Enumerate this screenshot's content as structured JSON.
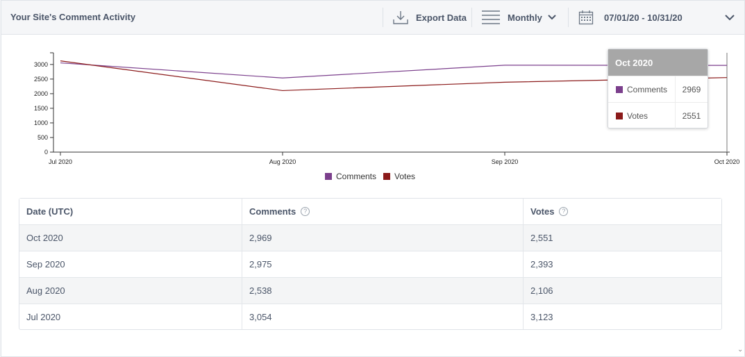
{
  "header": {
    "title": "Your Site's Comment Activity",
    "export_label": "Export Data",
    "period_label": "Monthly",
    "date_range": "07/01/20 - 10/31/20"
  },
  "colors": {
    "comments": "#7b3f8c",
    "votes": "#8b1a1a"
  },
  "chart_data": {
    "type": "line",
    "categories": [
      "Jul 2020",
      "Aug 2020",
      "Sep 2020",
      "Oct 2020"
    ],
    "series": [
      {
        "name": "Comments",
        "values": [
          3054,
          2538,
          2975,
          2969
        ]
      },
      {
        "name": "Votes",
        "values": [
          3123,
          2106,
          2393,
          2551
        ]
      }
    ],
    "yticks": [
      0,
      500,
      1000,
      1500,
      2000,
      2500,
      3000
    ],
    "ylim": [
      0,
      3400
    ]
  },
  "tooltip": {
    "title": "Oct 2020",
    "rows": [
      {
        "name": "Comments",
        "value": "2969"
      },
      {
        "name": "Votes",
        "value": "2551"
      }
    ]
  },
  "legend": {
    "comments": "Comments",
    "votes": "Votes"
  },
  "table": {
    "headers": [
      "Date (UTC)",
      "Comments",
      "Votes"
    ],
    "help_glyph": "?",
    "rows": [
      [
        "Oct 2020",
        "2,969",
        "2,551"
      ],
      [
        "Sep 2020",
        "2,975",
        "2,393"
      ],
      [
        "Aug 2020",
        "2,538",
        "2,106"
      ],
      [
        "Jul 2020",
        "3,054",
        "3,123"
      ]
    ]
  }
}
